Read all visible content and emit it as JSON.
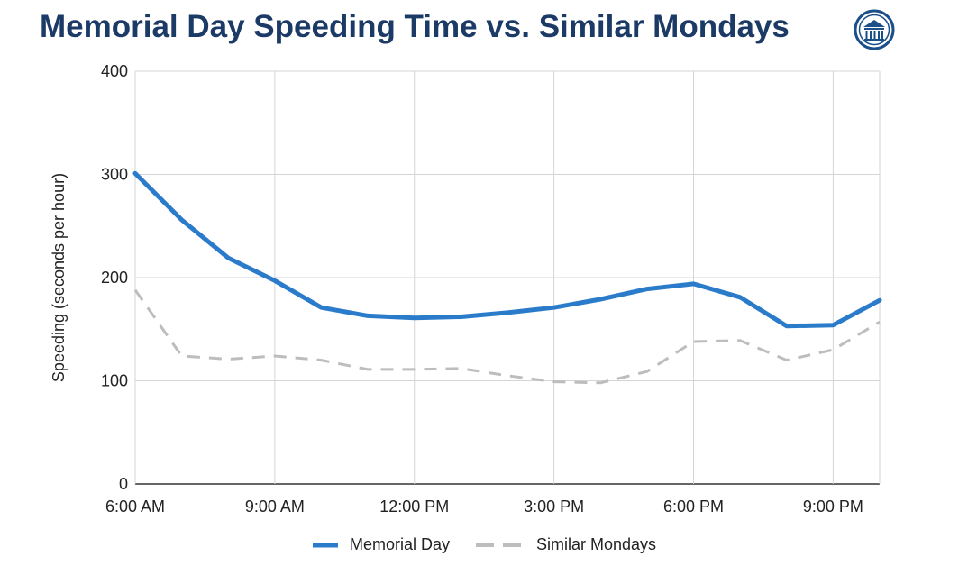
{
  "header": {
    "title": "Memorial Day Speeding Time vs. Similar Mondays"
  },
  "colors": {
    "title": "#1b3a66",
    "memorial_day": "#2b7bcb",
    "similar_mondays": "#bdbdbd",
    "grid": "#d5d5d5",
    "logo": "#1b4f8a"
  },
  "logo": {
    "icon": "columned-building-seal-icon"
  },
  "chart_data": {
    "type": "line",
    "title": "Memorial Day Speeding Time vs. Similar Mondays",
    "ylabel": "Speeding (seconds per hour)",
    "xlabel": "",
    "x": [
      "6:00 AM",
      "7:00 AM",
      "8:00 AM",
      "9:00 AM",
      "10:00 AM",
      "11:00 AM",
      "12:00 PM",
      "1:00 PM",
      "2:00 PM",
      "3:00 PM",
      "4:00 PM",
      "5:00 PM",
      "6:00 PM",
      "7:00 PM",
      "8:00 PM",
      "9:00 PM",
      "10:00 PM"
    ],
    "x_ticks": [
      "6:00 AM",
      "9:00 AM",
      "12:00 PM",
      "3:00 PM",
      "6:00 PM",
      "9:00 PM"
    ],
    "y_ticks": [
      0,
      100,
      200,
      300,
      400
    ],
    "ylim": [
      0,
      400
    ],
    "grid": true,
    "legend_position": "bottom",
    "series": [
      {
        "name": "Memorial Day",
        "style": "solid",
        "values": [
          301,
          256,
          219,
          197,
          171,
          163,
          161,
          162,
          166,
          171,
          179,
          189,
          194,
          181,
          153,
          154,
          178
        ]
      },
      {
        "name": "Similar Mondays",
        "style": "dashed",
        "values": [
          188,
          124,
          121,
          124,
          120,
          111,
          111,
          112,
          105,
          99,
          98,
          109,
          138,
          139,
          120,
          130,
          157
        ]
      }
    ]
  }
}
